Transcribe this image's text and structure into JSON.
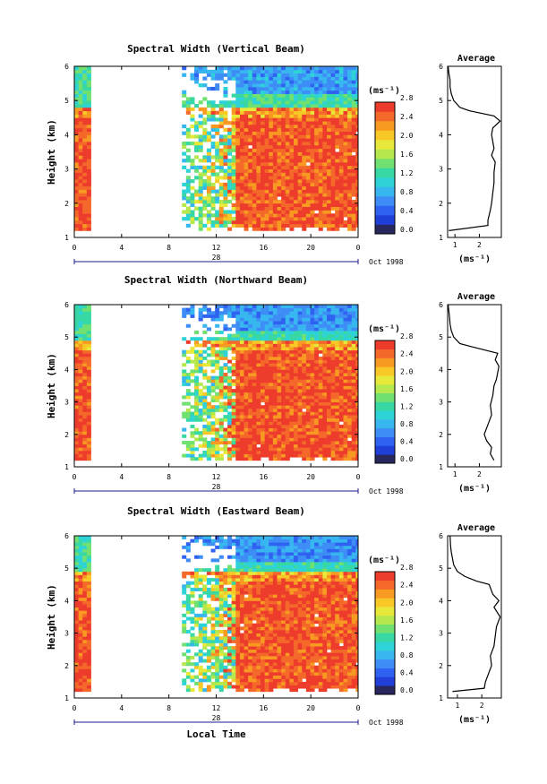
{
  "chart_data": [
    {
      "type": "heatmap",
      "title": "Spectral Width (Vertical Beam)",
      "xlabel": "",
      "ylabel": "Height (km)",
      "xticks": [
        "0",
        "4",
        "8",
        "12",
        "16",
        "20",
        "0"
      ],
      "yticks": [
        "1",
        "2",
        "3",
        "4",
        "5",
        "6"
      ],
      "xlim": [
        0,
        24
      ],
      "ylim": [
        1,
        6
      ],
      "date_day": "28",
      "date_month": "Oct 1998",
      "colorbar_unit": "(ms⁻¹)",
      "colorbar_levels": [
        "0.0",
        "0.4",
        "0.8",
        "1.2",
        "1.6",
        "2.0",
        "2.4",
        "2.8"
      ],
      "field": {
        "data_ranges": [
          [
            0,
            1.3
          ],
          [
            8.8,
            24
          ]
        ],
        "low_layer_top": 4.6,
        "upper_value": 0.7,
        "lower_value": 2.8
      },
      "average_profile": {
        "title": "Average",
        "xlabel": "(ms⁻¹)",
        "xticks": [
          "1",
          "2"
        ],
        "yticks": [
          "1",
          "2",
          "3",
          "4",
          "5",
          "6"
        ],
        "xlim": [
          0.7,
          2.9
        ],
        "heights": [
          1.2,
          1.35,
          1.5,
          1.8,
          2.0,
          2.3,
          2.6,
          2.9,
          3.2,
          3.4,
          3.6,
          3.8,
          4.0,
          4.2,
          4.4,
          4.55,
          4.7,
          4.8,
          5.0,
          5.2,
          5.4,
          5.6,
          5.8,
          6.0
        ],
        "values": [
          0.75,
          2.35,
          2.35,
          2.45,
          2.5,
          2.55,
          2.6,
          2.6,
          2.65,
          2.5,
          2.6,
          2.55,
          2.5,
          2.55,
          2.85,
          2.6,
          1.6,
          1.2,
          0.95,
          0.85,
          0.8,
          0.8,
          0.75,
          0.72
        ]
      }
    },
    {
      "type": "heatmap",
      "title": "Spectral Width (Northward Beam)",
      "xlabel": "",
      "ylabel": "Height (km)",
      "xticks": [
        "0",
        "4",
        "8",
        "12",
        "16",
        "20",
        "0"
      ],
      "yticks": [
        "1",
        "2",
        "3",
        "4",
        "5",
        "6"
      ],
      "xlim": [
        0,
        24
      ],
      "ylim": [
        1,
        6
      ],
      "date_day": "28",
      "date_month": "Oct 1998",
      "colorbar_unit": "(ms⁻¹)",
      "colorbar_levels": [
        "0.0",
        "0.4",
        "0.8",
        "1.2",
        "1.6",
        "2.0",
        "2.4",
        "2.8"
      ],
      "field": {
        "data_ranges": [
          [
            0,
            1.3
          ],
          [
            8.8,
            24
          ]
        ],
        "low_layer_top": 4.65,
        "upper_value": 0.65,
        "lower_value": 2.8
      },
      "average_profile": {
        "title": "Average",
        "xlabel": "(ms⁻¹)",
        "xticks": [
          "1",
          "2"
        ],
        "yticks": [
          "1",
          "2",
          "3",
          "4",
          "5",
          "6"
        ],
        "xlim": [
          0.7,
          2.9
        ],
        "heights": [
          1.2,
          1.4,
          1.6,
          1.8,
          2.0,
          2.3,
          2.6,
          2.9,
          3.2,
          3.5,
          3.7,
          3.9,
          4.1,
          4.3,
          4.5,
          4.7,
          4.8,
          5.0,
          5.2,
          5.4,
          5.6,
          5.8,
          6.0
        ],
        "values": [
          2.6,
          2.45,
          2.5,
          2.3,
          2.2,
          2.35,
          2.5,
          2.45,
          2.55,
          2.6,
          2.7,
          2.75,
          2.8,
          2.65,
          2.75,
          1.7,
          1.2,
          0.95,
          0.85,
          0.8,
          0.78,
          0.75,
          0.72
        ]
      }
    },
    {
      "type": "heatmap",
      "title": "Spectral Width (Eastward Beam)",
      "xlabel": "Local Time",
      "ylabel": "Height (km)",
      "xticks": [
        "0",
        "4",
        "8",
        "12",
        "16",
        "20",
        "0"
      ],
      "yticks": [
        "1",
        "2",
        "3",
        "4",
        "5",
        "6"
      ],
      "xlim": [
        0,
        24
      ],
      "ylim": [
        1,
        6
      ],
      "date_day": "28",
      "date_month": "Oct 1998",
      "colorbar_unit": "(ms⁻¹)",
      "colorbar_levels": [
        "0.0",
        "0.4",
        "0.8",
        "1.2",
        "1.6",
        "2.0",
        "2.4",
        "2.8"
      ],
      "field": {
        "data_ranges": [
          [
            0,
            1.3
          ],
          [
            8.8,
            24
          ]
        ],
        "low_layer_top": 4.65,
        "upper_value": 0.65,
        "lower_value": 2.8
      },
      "average_profile": {
        "title": "Average",
        "xlabel": "(ms⁻¹)",
        "xticks": [
          "1",
          "2"
        ],
        "yticks": [
          "1",
          "2",
          "3",
          "4",
          "5",
          "6"
        ],
        "xlim": [
          0.6,
          2.8
        ],
        "heights": [
          1.2,
          1.3,
          1.5,
          1.8,
          2.0,
          2.3,
          2.6,
          2.9,
          3.2,
          3.5,
          3.8,
          4.0,
          4.2,
          4.5,
          4.6,
          4.75,
          4.9,
          5.1,
          5.3,
          5.5,
          5.7,
          6.0
        ],
        "values": [
          0.8,
          2.1,
          2.15,
          2.3,
          2.4,
          2.35,
          2.5,
          2.55,
          2.6,
          2.75,
          2.5,
          2.7,
          2.45,
          2.3,
          1.8,
          1.3,
          1.0,
          0.85,
          0.8,
          0.75,
          0.72,
          0.7
        ]
      }
    }
  ],
  "colors": {
    "scale": [
      "#27275d",
      "#1f3fd8",
      "#2f62f0",
      "#3e8cf6",
      "#37b6f0",
      "#2ed3d8",
      "#38d8a5",
      "#70e070",
      "#b4e84c",
      "#e8e83a",
      "#f8c826",
      "#f89a22",
      "#f4682a",
      "#ee3c2c"
    ],
    "text": "#000000",
    "date_rule": "#1a1a8c"
  }
}
